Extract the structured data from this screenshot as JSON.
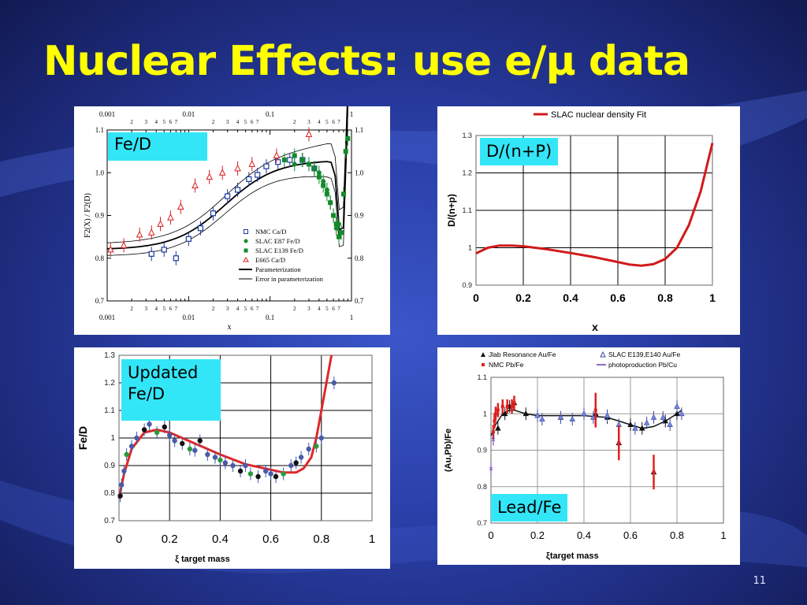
{
  "slide": {
    "title": "Nuclear Effects: use e/μ data",
    "page_number": "11"
  },
  "chart_data": [
    {
      "type": "scatter",
      "tag": "Fe/D",
      "xlabel": "x",
      "ylabel": "F2(X) / F2(D)",
      "x_scale": "log",
      "xlim": [
        0.001,
        1
      ],
      "ylim": [
        0.7,
        1.1
      ],
      "top_tick_labels": [
        "0.001",
        "2",
        "3",
        "4",
        "5",
        "6",
        "7",
        "0.01",
        "2",
        "3",
        "4",
        "5",
        "6",
        "7",
        "0.1",
        "2",
        "3",
        "4",
        "5",
        "6",
        "7",
        "1"
      ],
      "y_ticks": [
        "0.7",
        "0.8",
        "0.9",
        "1.0",
        "1.1"
      ],
      "legend": [
        "NMC Ca/D",
        "SLAC E87 Fe/D",
        "SLAC E139 Fe/D",
        "E665  Ca/D",
        "Parameterization",
        "Error in parameterization"
      ],
      "series": [
        {
          "name": "NMC Ca/D",
          "x": [
            0.0035,
            0.005,
            0.007,
            0.01,
            0.014,
            0.02,
            0.03,
            0.04,
            0.055,
            0.07,
            0.09,
            0.125,
            0.175,
            0.25,
            0.35
          ],
          "y": [
            0.81,
            0.82,
            0.8,
            0.845,
            0.87,
            0.905,
            0.945,
            0.96,
            0.985,
            0.995,
            1.015,
            1.025,
            1.03,
            1.03,
            1.01
          ]
        },
        {
          "name": "SLAC E87 Fe/D",
          "x": [
            0.2,
            0.25,
            0.3,
            0.35,
            0.4,
            0.45,
            0.5,
            0.55,
            0.6,
            0.65,
            0.7
          ],
          "y": [
            1.02,
            1.03,
            1.02,
            1.01,
            1.0,
            0.98,
            0.96,
            0.93,
            0.9,
            0.87,
            0.88
          ]
        },
        {
          "name": "SLAC E139 Fe/D",
          "x": [
            0.15,
            0.2,
            0.25,
            0.3,
            0.35,
            0.4,
            0.45,
            0.5,
            0.55,
            0.6,
            0.65,
            0.7,
            0.75,
            0.8,
            0.85,
            0.9
          ],
          "y": [
            1.03,
            1.04,
            1.03,
            1.02,
            1.01,
            0.99,
            0.97,
            0.95,
            0.93,
            0.9,
            0.88,
            0.85,
            0.86,
            0.95,
            1.05,
            1.08
          ]
        },
        {
          "name": "E665  Ca/D",
          "x": [
            0.0011,
            0.0016,
            0.0025,
            0.0035,
            0.0045,
            0.006,
            0.008,
            0.012,
            0.018,
            0.026,
            0.04,
            0.06,
            0.12,
            0.3
          ],
          "y": [
            0.82,
            0.83,
            0.855,
            0.86,
            0.88,
            0.895,
            0.92,
            0.97,
            0.99,
            1.0,
            1.01,
            1.02,
            1.04,
            1.09
          ]
        }
      ]
    },
    {
      "type": "line",
      "tag": "D/(n+P)",
      "legend": [
        "SLAC nuclear density Fit"
      ],
      "xlabel": "x",
      "ylabel": "D/(n+p)",
      "xlim": [
        0,
        1
      ],
      "ylim": [
        0.9,
        1.3
      ],
      "x_ticks": [
        "0",
        "0.2",
        "0.4",
        "0.6",
        "0.8",
        "1"
      ],
      "y_ticks": [
        "0.9",
        "1",
        "1.1",
        "1.2",
        "1.3"
      ],
      "series": [
        {
          "name": "SLAC nuclear density Fit",
          "x": [
            0,
            0.05,
            0.1,
            0.15,
            0.2,
            0.3,
            0.4,
            0.5,
            0.6,
            0.65,
            0.7,
            0.75,
            0.8,
            0.85,
            0.9,
            0.95,
            1.0
          ],
          "y": [
            0.985,
            1.0,
            1.006,
            1.006,
            1.004,
            0.996,
            0.986,
            0.975,
            0.962,
            0.955,
            0.952,
            0.956,
            0.97,
            1.0,
            1.06,
            1.15,
            1.28
          ]
        }
      ]
    },
    {
      "type": "scatter",
      "tag": "Updated\nFe/D",
      "xlabel": "ξ target mass",
      "ylabel": "Fe/D",
      "xlim": [
        0,
        1
      ],
      "ylim": [
        0.7,
        1.3
      ],
      "x_ticks": [
        "0",
        "0.2",
        "0.4",
        "0.6",
        "0.8",
        "1"
      ],
      "y_ticks": [
        "0.7",
        "0.8",
        "0.9",
        "1",
        "1.1",
        "1.2",
        "1.3"
      ],
      "series": [
        {
          "name": "fit",
          "x": [
            0,
            0.02,
            0.05,
            0.1,
            0.15,
            0.2,
            0.3,
            0.4,
            0.5,
            0.6,
            0.65,
            0.7,
            0.73,
            0.76,
            0.78,
            0.8,
            0.82,
            0.84
          ],
          "y": [
            0.78,
            0.87,
            0.96,
            1.02,
            1.03,
            1.02,
            0.98,
            0.94,
            0.905,
            0.885,
            0.875,
            0.875,
            0.89,
            0.93,
            1.0,
            1.1,
            1.2,
            1.3
          ]
        },
        {
          "name": "data",
          "x": [
            0.005,
            0.01,
            0.02,
            0.03,
            0.05,
            0.07,
            0.1,
            0.12,
            0.15,
            0.18,
            0.2,
            0.22,
            0.25,
            0.28,
            0.3,
            0.32,
            0.35,
            0.38,
            0.4,
            0.42,
            0.45,
            0.48,
            0.5,
            0.52,
            0.55,
            0.58,
            0.6,
            0.62,
            0.65,
            0.68,
            0.7,
            0.72,
            0.75,
            0.78,
            0.8,
            0.85
          ],
          "y": [
            0.79,
            0.83,
            0.88,
            0.94,
            0.97,
            1.0,
            1.03,
            1.05,
            1.02,
            1.04,
            1.01,
            0.99,
            0.98,
            0.96,
            0.955,
            0.99,
            0.94,
            0.93,
            0.92,
            0.91,
            0.9,
            0.88,
            0.9,
            0.87,
            0.86,
            0.88,
            0.87,
            0.86,
            0.87,
            0.9,
            0.91,
            0.93,
            0.96,
            0.97,
            1.0,
            1.2
          ]
        }
      ]
    },
    {
      "type": "scatter",
      "tag": "Lead/Fe",
      "xlabel": "ξtarget mass",
      "ylabel": "(Au,Pb)/Fe",
      "xlim": [
        0,
        1
      ],
      "ylim": [
        0.7,
        1.1
      ],
      "x_ticks": [
        "0",
        "0.2",
        "0.4",
        "0.6",
        "0.8",
        "1"
      ],
      "y_ticks": [
        "0.7",
        "0.8",
        "0.9",
        "1",
        "1.1"
      ],
      "legend": [
        "Jlab Resonance Au/Fe",
        "SLAC E139,E140 Au/Fe",
        "NMC Pb/Fe",
        "photoproduction Pb/Cu"
      ],
      "series": [
        {
          "name": "fit",
          "x": [
            0,
            0.02,
            0.05,
            0.08,
            0.1,
            0.15,
            0.2,
            0.3,
            0.4,
            0.5,
            0.55,
            0.6,
            0.65,
            0.7,
            0.75,
            0.8,
            0.82
          ],
          "y": [
            0.94,
            0.97,
            1.0,
            1.01,
            1.01,
            1.0,
            0.995,
            0.995,
            0.995,
            0.99,
            0.98,
            0.97,
            0.96,
            0.965,
            0.98,
            1.0,
            1.01
          ]
        },
        {
          "name": "Jlab Resonance Au/Fe",
          "x": [
            0.03,
            0.06,
            0.08,
            0.1,
            0.15,
            0.3,
            0.45,
            0.5,
            0.55,
            0.6,
            0.65,
            0.7,
            0.75,
            0.8
          ],
          "y": [
            0.96,
            1.0,
            1.02,
            1.03,
            1.0,
            0.99,
            1.0,
            0.99,
            0.92,
            0.97,
            0.96,
            0.84,
            0.98,
            1.0
          ]
        },
        {
          "name": "SLAC E139,E140 Au/Fe",
          "x": [
            0.2,
            0.22,
            0.3,
            0.35,
            0.4,
            0.44,
            0.5,
            0.55,
            0.62,
            0.67,
            0.7,
            0.74,
            0.77,
            0.8,
            0.82
          ],
          "y": [
            0.995,
            0.985,
            0.99,
            0.985,
            1.0,
            0.99,
            0.995,
            0.97,
            0.96,
            0.975,
            0.99,
            0.99,
            0.97,
            1.02,
            1.0
          ]
        },
        {
          "name": "NMC Pb/Fe",
          "x": [
            0.01,
            0.015,
            0.02,
            0.03,
            0.05,
            0.07,
            0.09,
            0.1,
            0.45,
            0.55,
            0.7
          ],
          "y": [
            0.95,
            0.98,
            1.0,
            1.01,
            1.02,
            1.02,
            1.02,
            1.03,
            1.01,
            0.92,
            0.84
          ]
        },
        {
          "name": "photoproduction Pb/Cu",
          "x": [
            0.0,
            0.01
          ],
          "y": [
            0.85,
            0.93
          ]
        }
      ]
    }
  ]
}
